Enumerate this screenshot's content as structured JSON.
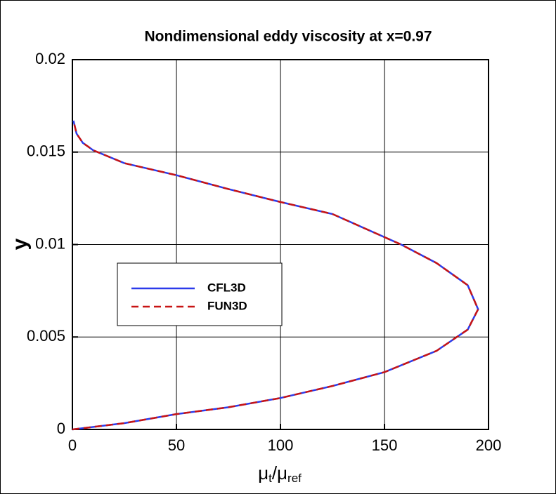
{
  "chart_data": {
    "type": "line",
    "title": "Nondimensional eddy viscosity at x=0.97",
    "x_label": [
      "μ",
      "t",
      "/μ",
      "ref"
    ],
    "y_label": "y",
    "x": [
      0,
      25,
      50,
      75,
      100,
      125,
      150,
      175,
      190,
      195,
      190,
      175,
      158,
      125,
      100,
      75,
      50,
      25,
      10,
      5,
      2,
      0.5
    ],
    "series": [
      {
        "name": "CFL3D",
        "color": "#2b3bea",
        "line_style": "solid",
        "values": [
          0,
          0.00034,
          0.00083,
          0.0012,
          0.0017,
          0.00235,
          0.0031,
          0.00425,
          0.0054,
          0.0065,
          0.0078,
          0.009,
          0.01,
          0.01165,
          0.0123,
          0.013,
          0.01375,
          0.0144,
          0.0151,
          0.0155,
          0.016,
          0.0167
        ]
      },
      {
        "name": "FUN3D",
        "color": "#c81414",
        "line_style": "dashed",
        "values": [
          0,
          0.00034,
          0.00083,
          0.0012,
          0.0017,
          0.00235,
          0.0031,
          0.00425,
          0.0054,
          0.0065,
          0.0078,
          0.009,
          0.01,
          0.01165,
          0.0123,
          0.013,
          0.01375,
          0.0144,
          0.0151,
          0.0155,
          0.016,
          0.0167
        ]
      }
    ],
    "xlim": [
      0,
      200
    ],
    "xticks": [
      0,
      50,
      100,
      150,
      200
    ],
    "ylim": [
      0,
      0.02
    ],
    "yticks": [
      0,
      0.005,
      0.01,
      0.015,
      0.02
    ],
    "grid": true,
    "legend": "center-left"
  }
}
